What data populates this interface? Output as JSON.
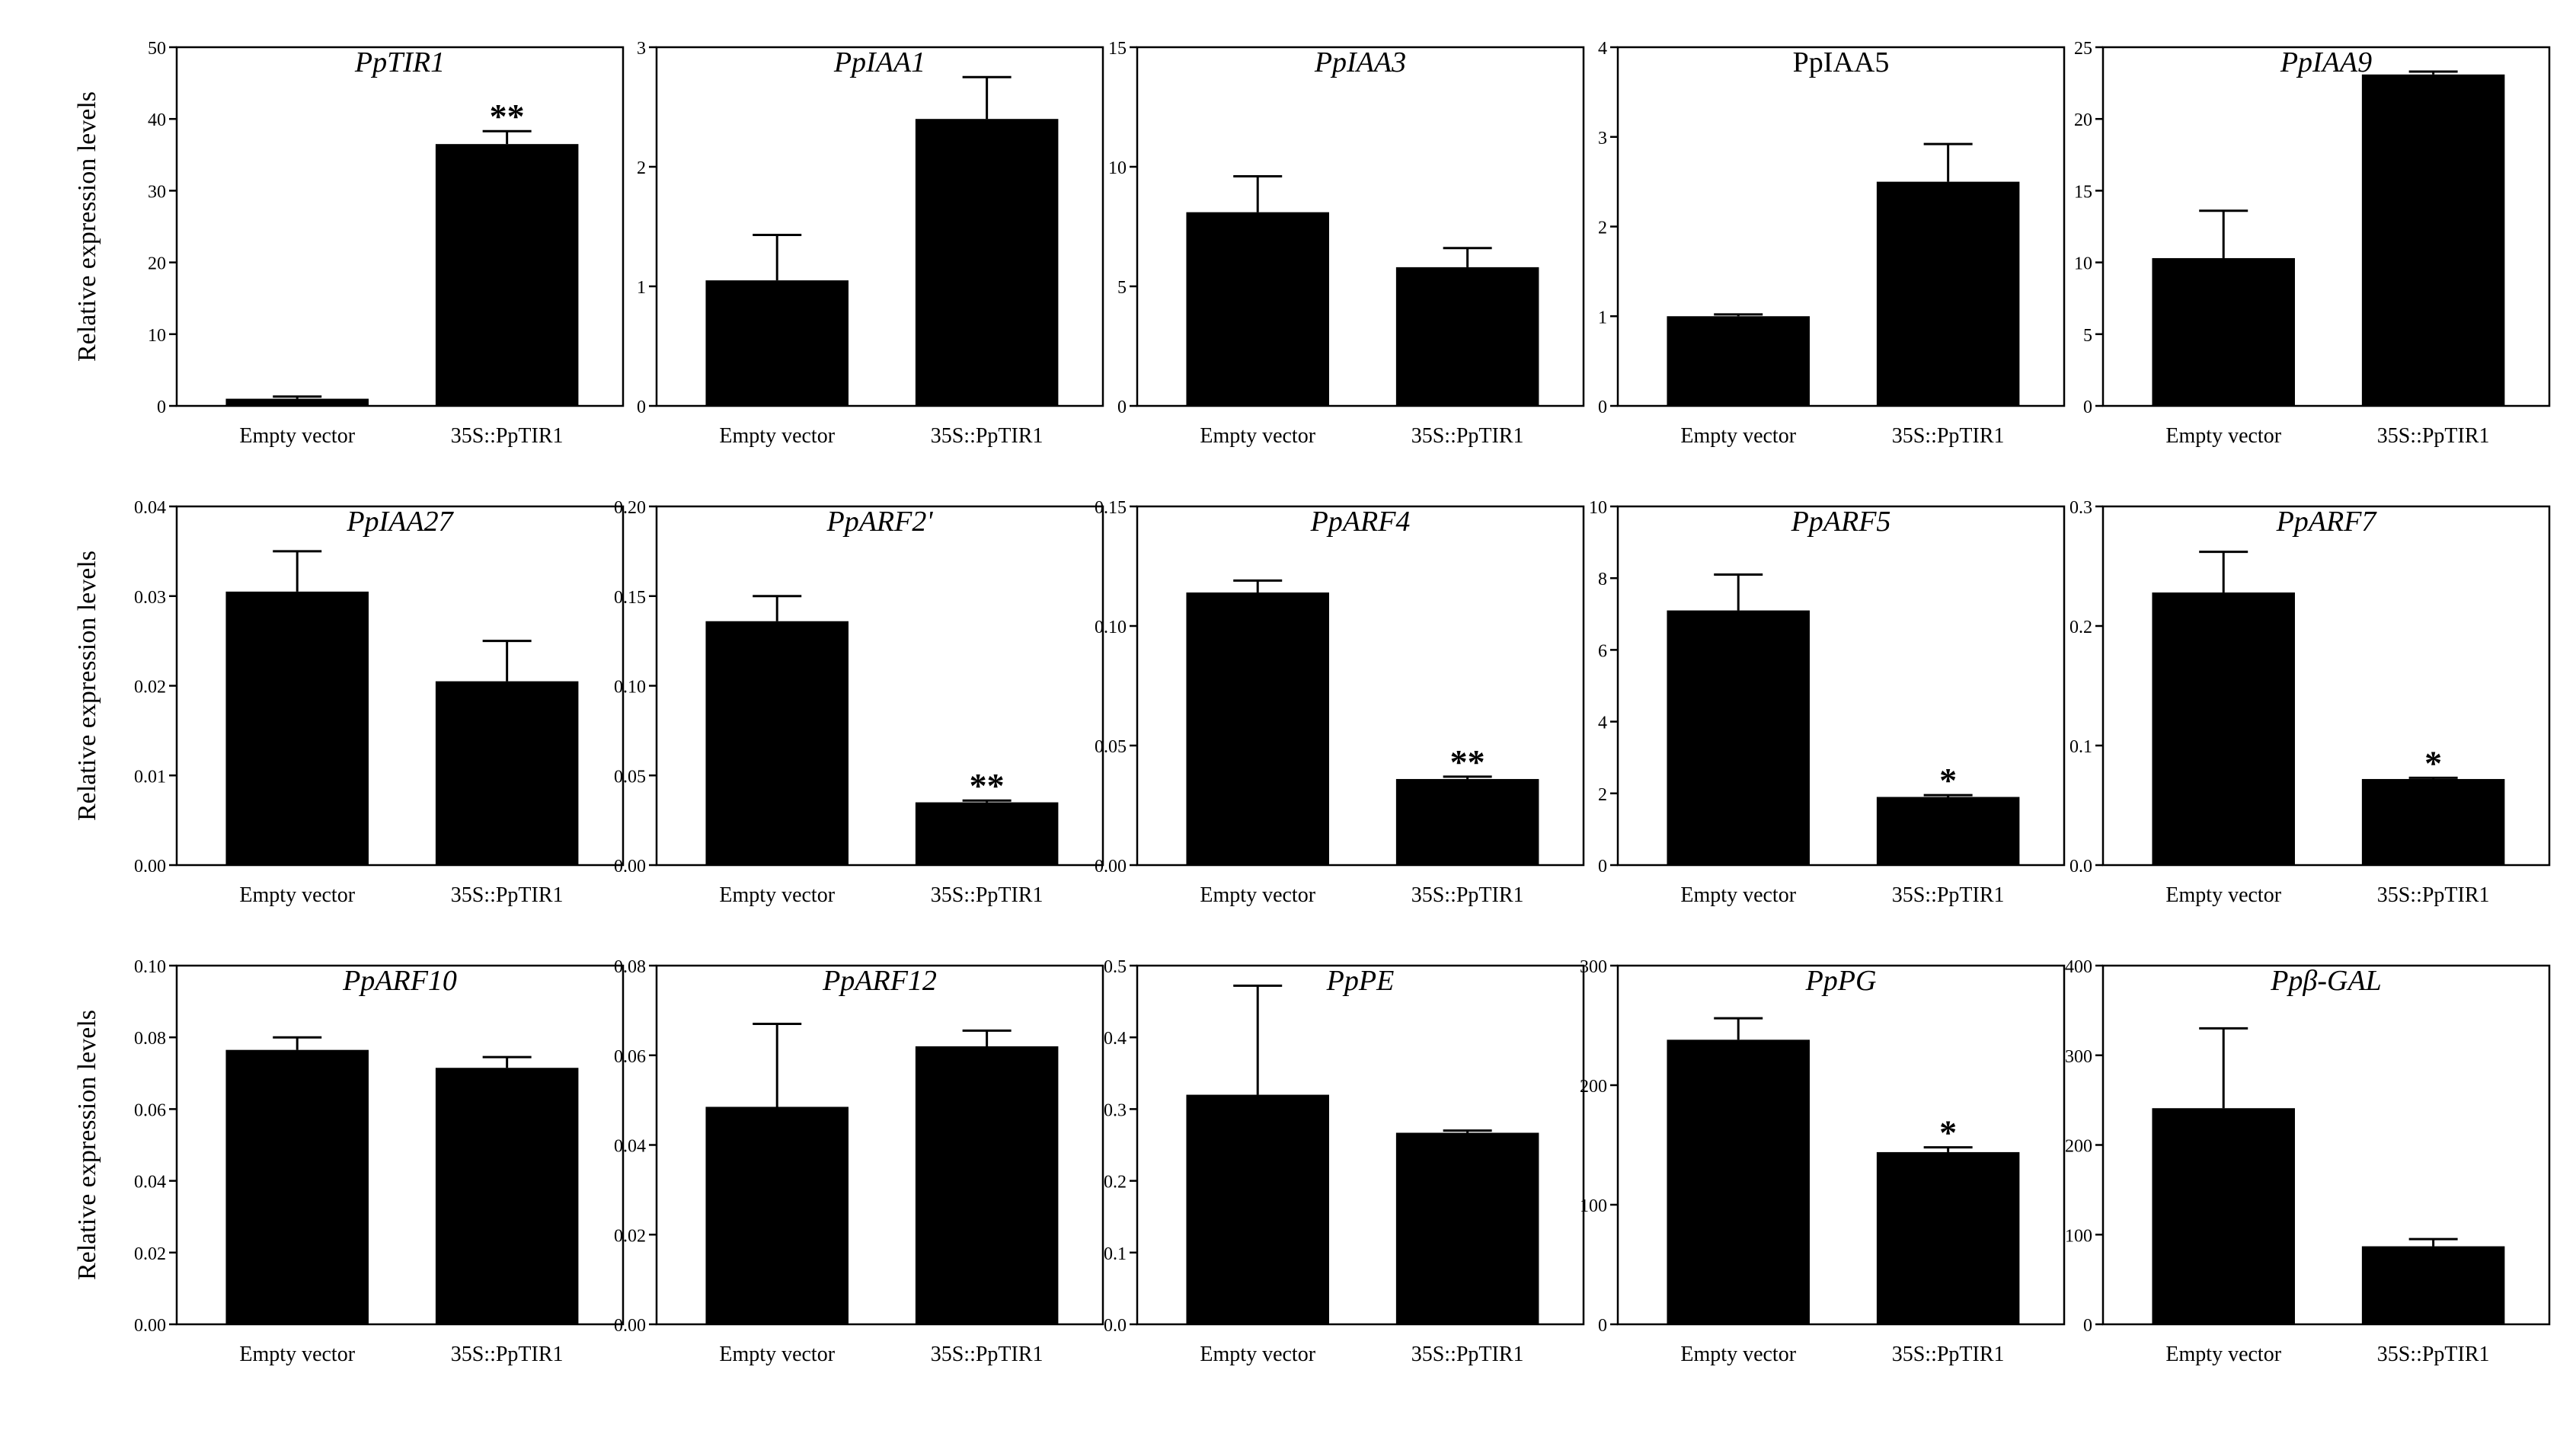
{
  "figure": {
    "ylabel": "Relative expression levels",
    "categories": [
      "Empty vector",
      "35S::PpTIR1"
    ]
  },
  "chart_data": [
    {
      "type": "bar",
      "title": "PpTIR1",
      "title_italic": true,
      "categories": [
        "Empty vector",
        "35S::PpTIR1"
      ],
      "values": [
        1.0,
        36.5
      ],
      "errors": [
        0.3,
        1.8
      ],
      "significance": [
        "",
        "**"
      ],
      "ylim": [
        0,
        50
      ],
      "yticks": [
        "0",
        "10",
        "20",
        "30",
        "40",
        "50"
      ],
      "ylabel": "Relative expression levels"
    },
    {
      "type": "bar",
      "title": "PpIAA1",
      "title_italic": true,
      "categories": [
        "Empty vector",
        "35S::PpTIR1"
      ],
      "values": [
        1.05,
        2.4
      ],
      "errors": [
        0.38,
        0.35
      ],
      "significance": [
        "",
        ""
      ],
      "ylim": [
        0,
        3
      ],
      "yticks": [
        "0",
        "1",
        "2",
        "3"
      ],
      "ylabel": ""
    },
    {
      "type": "bar",
      "title": "PpIAA3",
      "title_italic": true,
      "categories": [
        "Empty vector",
        "35S::PpTIR1"
      ],
      "values": [
        8.1,
        5.8
      ],
      "errors": [
        1.5,
        0.8
      ],
      "significance": [
        "",
        ""
      ],
      "ylim": [
        0,
        15
      ],
      "yticks": [
        "0",
        "5",
        "10",
        "15"
      ],
      "ylabel": ""
    },
    {
      "type": "bar",
      "title": "PpIAA5",
      "title_italic": false,
      "categories": [
        "Empty vector",
        "35S::PpTIR1"
      ],
      "values": [
        1.0,
        2.5
      ],
      "errors": [
        0.02,
        0.42
      ],
      "significance": [
        "",
        ""
      ],
      "ylim": [
        0,
        4
      ],
      "yticks": [
        "0",
        "1",
        "2",
        "3",
        "4"
      ],
      "ylabel": ""
    },
    {
      "type": "bar",
      "title": "PpIAA9",
      "title_italic": true,
      "categories": [
        "Empty vector",
        "35S::PpTIR1"
      ],
      "values": [
        10.3,
        23.1
      ],
      "errors": [
        3.3,
        0.2
      ],
      "significance": [
        "",
        ""
      ],
      "ylim": [
        0,
        25
      ],
      "yticks": [
        "0",
        "5",
        "10",
        "15",
        "20",
        "25"
      ],
      "ylabel": ""
    },
    {
      "type": "bar",
      "title": "PpIAA27",
      "title_italic": true,
      "categories": [
        "Empty vector",
        "35S::PpTIR1"
      ],
      "values": [
        0.0305,
        0.0205
      ],
      "errors": [
        0.0045,
        0.0045
      ],
      "significance": [
        "",
        ""
      ],
      "ylim": [
        0,
        0.04
      ],
      "yticks": [
        "0.00",
        "0.01",
        "0.02",
        "0.03",
        "0.04"
      ],
      "ylabel": "Relative expression levels"
    },
    {
      "type": "bar",
      "title": "PpARF2'",
      "title_italic": true,
      "categories": [
        "Empty vector",
        "35S::PpTIR1"
      ],
      "values": [
        0.136,
        0.035
      ],
      "errors": [
        0.014,
        0.001
      ],
      "significance": [
        "",
        "**"
      ],
      "ylim": [
        0,
        0.2
      ],
      "yticks": [
        "0.00",
        "0.05",
        "0.10",
        "0.15",
        "0.20"
      ],
      "ylabel": ""
    },
    {
      "type": "bar",
      "title": "PpARF4",
      "title_italic": true,
      "categories": [
        "Empty vector",
        "35S::PpTIR1"
      ],
      "values": [
        0.114,
        0.036
      ],
      "errors": [
        0.005,
        0.001
      ],
      "significance": [
        "",
        "**"
      ],
      "ylim": [
        0,
        0.15
      ],
      "yticks": [
        "0.00",
        "0.05",
        "0.10",
        "0.15"
      ],
      "ylabel": ""
    },
    {
      "type": "bar",
      "title": "PpARF5",
      "title_italic": true,
      "categories": [
        "Empty vector",
        "35S::PpTIR1"
      ],
      "values": [
        7.1,
        1.9
      ],
      "errors": [
        1.0,
        0.05
      ],
      "significance": [
        "",
        "*"
      ],
      "ylim": [
        0,
        10
      ],
      "yticks": [
        "0",
        "2",
        "4",
        "6",
        "8",
        "10"
      ],
      "ylabel": ""
    },
    {
      "type": "bar",
      "title": "PpARF7",
      "title_italic": true,
      "categories": [
        "Empty vector",
        "35S::PpTIR1"
      ],
      "values": [
        0.228,
        0.072
      ],
      "errors": [
        0.034,
        0.001
      ],
      "significance": [
        "",
        "*"
      ],
      "ylim": [
        0,
        0.3
      ],
      "yticks": [
        "0.0",
        "0.1",
        "0.2",
        "0.3"
      ],
      "ylabel": ""
    },
    {
      "type": "bar",
      "title": "PpARF10",
      "title_italic": true,
      "categories": [
        "Empty vector",
        "35S::PpTIR1"
      ],
      "values": [
        0.0765,
        0.0715
      ],
      "errors": [
        0.0035,
        0.003
      ],
      "significance": [
        "",
        ""
      ],
      "ylim": [
        0,
        0.1
      ],
      "yticks": [
        "0.00",
        "0.02",
        "0.04",
        "0.06",
        "0.08",
        "0.10"
      ],
      "ylabel": "Relative expression levels"
    },
    {
      "type": "bar",
      "title": "PpARF12",
      "title_italic": true,
      "categories": [
        "Empty vector",
        "35S::PpTIR1"
      ],
      "values": [
        0.0485,
        0.062
      ],
      "errors": [
        0.0185,
        0.0035
      ],
      "significance": [
        "",
        ""
      ],
      "ylim": [
        0,
        0.08
      ],
      "yticks": [
        "0.00",
        "0.02",
        "0.04",
        "0.06",
        "0.08"
      ],
      "ylabel": ""
    },
    {
      "type": "bar",
      "title": "PpPE",
      "title_italic": true,
      "categories": [
        "Empty vector",
        "35S::PpTIR1"
      ],
      "values": [
        0.32,
        0.267
      ],
      "errors": [
        0.152,
        0.003
      ],
      "significance": [
        "",
        ""
      ],
      "ylim": [
        0,
        0.5
      ],
      "yticks": [
        "0.0",
        "0.1",
        "0.2",
        "0.3",
        "0.4",
        "0.5"
      ],
      "ylabel": ""
    },
    {
      "type": "bar",
      "title": "PpPG",
      "title_italic": true,
      "categories": [
        "Empty vector",
        "35S::PpTIR1"
      ],
      "values": [
        238,
        144
      ],
      "errors": [
        18,
        4
      ],
      "significance": [
        "",
        "*"
      ],
      "ylim": [
        0,
        300
      ],
      "yticks": [
        "0",
        "100",
        "200",
        "300"
      ],
      "ylabel": ""
    },
    {
      "type": "bar",
      "title": "Ppβ-GAL",
      "title_italic": true,
      "categories": [
        "Empty vector",
        "35S::PpTIR1"
      ],
      "values": [
        241,
        87
      ],
      "errors": [
        89,
        8
      ],
      "significance": [
        "",
        ""
      ],
      "ylim": [
        0,
        400
      ],
      "yticks": [
        "0",
        "100",
        "200",
        "300",
        "400"
      ],
      "ylabel": ""
    }
  ]
}
